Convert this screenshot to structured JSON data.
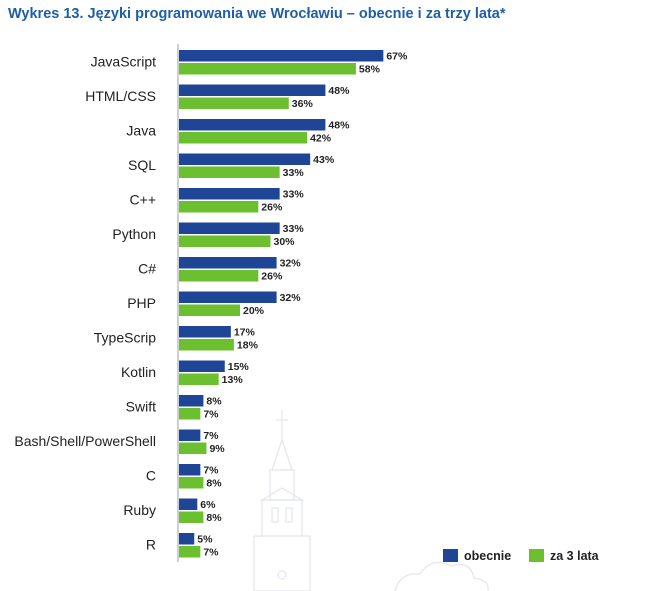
{
  "title": "Wykres 13. Języki programowania we Wrocławiu – obecnie i za trzy lata*",
  "chart_data": {
    "type": "bar",
    "orientation": "horizontal",
    "categories": [
      "JavaScript",
      "HTML/CSS",
      "Java",
      "SQL",
      "C++",
      "Python",
      "C#",
      "PHP",
      "TypeScrip",
      "Kotlin",
      "Swift",
      "Bash/Shell/PowerShell",
      "C",
      "Ruby",
      "R"
    ],
    "series": [
      {
        "name": "obecnie",
        "color": "#1f4596",
        "values": [
          67,
          48,
          48,
          43,
          33,
          33,
          32,
          32,
          17,
          15,
          8,
          7,
          7,
          6,
          5
        ]
      },
      {
        "name": "za 3 lata",
        "color": "#6cbf2e",
        "values": [
          58,
          36,
          42,
          33,
          26,
          30,
          26,
          20,
          18,
          13,
          7,
          9,
          8,
          8,
          7
        ]
      }
    ],
    "value_suffix": "%",
    "xlim": [
      0,
      100
    ],
    "grid": false,
    "legend_position": "bottom-right"
  }
}
